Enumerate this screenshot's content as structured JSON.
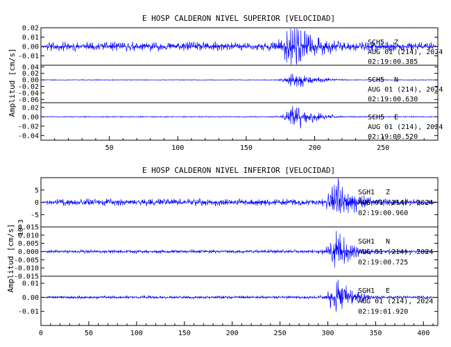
{
  "chart_data": [
    {
      "type": "line",
      "title": "E HOSP CALDERON NIVEL SUPERIOR [VELOCIDAD]",
      "ylabel": "Amplitud [cm/s]",
      "xlim": [
        0,
        290
      ],
      "xticks": [
        50,
        100,
        150,
        200,
        250
      ],
      "line_color": "#0000ff",
      "channels": [
        {
          "station": "SCH5",
          "component": "Z",
          "date": "AUG 01 (214), 2024",
          "time": "02:19:00.385",
          "ylim": [
            -0.02,
            0.02
          ],
          "yticks": [
            "-0.01",
            "0.00",
            "0.01",
            "0.02"
          ],
          "noise_amp": 0.0055,
          "peak_center": 185,
          "peak_amp": 0.02,
          "peak_width": 8,
          "taper": 6
        },
        {
          "station": "SCH5",
          "component": "N",
          "date": "AUG 01 (214), 2024",
          "time": "02:19:00.630",
          "ylim": [
            -0.07,
            0.045
          ],
          "yticks": [
            "-0.06",
            "-0.04",
            "-0.02",
            "0.00",
            "0.02",
            "0.04"
          ],
          "noise_amp": 0.0012,
          "peak_center": 187,
          "peak_amp": 0.025,
          "peak_width": 8,
          "taper": 6
        },
        {
          "station": "SCH5",
          "component": "E",
          "date": "AUG 01 (214), 2024",
          "time": "02:19:00.520",
          "ylim": [
            -0.05,
            0.03
          ],
          "yticks": [
            "-0.04",
            "-0.02",
            "0.00",
            "0.02"
          ],
          "noise_amp": 0.0012,
          "peak_center": 187,
          "peak_amp": 0.025,
          "peak_width": 8,
          "taper": 6
        }
      ]
    },
    {
      "type": "line",
      "title": "E HOSP CALDERON NIVEL INFERIOR [VELOCIDAD]",
      "ylabel": "Amplitud [cm/s]",
      "xlim": [
        0,
        415
      ],
      "xticks": [
        0,
        50,
        100,
        150,
        200,
        250,
        300,
        350,
        400
      ],
      "line_color": "#0000ff",
      "channels": [
        {
          "station": "SGH1",
          "component": "Z",
          "date": "AUG 01 (214), 2024",
          "time": "02:19:00.960",
          "ylim": [
            -10,
            10
          ],
          "yticks": [
            "-5",
            "0",
            "5"
          ],
          "scale_label": "10-3",
          "noise_amp": 1.6,
          "peak_center": 310,
          "peak_amp": 8.5,
          "peak_width": 9,
          "taper": 10
        },
        {
          "station": "SGH1",
          "component": "N",
          "date": "AUG 01 (214), 2024",
          "time": "02:19:00.725",
          "ylim": [
            -0.015,
            0.015
          ],
          "yticks": [
            "-0.015",
            "-0.010",
            "-0.005",
            "0.000",
            "0.005",
            "0.010",
            "0.015"
          ],
          "noise_amp": 0.0012,
          "peak_center": 310,
          "peak_amp": 0.012,
          "peak_width": 9,
          "taper": 10
        },
        {
          "station": "SGH1",
          "component": "E",
          "date": "AUG 01 (214), 2024",
          "time": "02:19:01.920",
          "ylim": [
            -0.02,
            0.015
          ],
          "yticks": [
            "-0.01",
            "0.00",
            "0.01"
          ],
          "noise_amp": 0.0012,
          "peak_center": 310,
          "peak_amp": 0.013,
          "peak_width": 9,
          "taper": 10
        }
      ]
    }
  ]
}
